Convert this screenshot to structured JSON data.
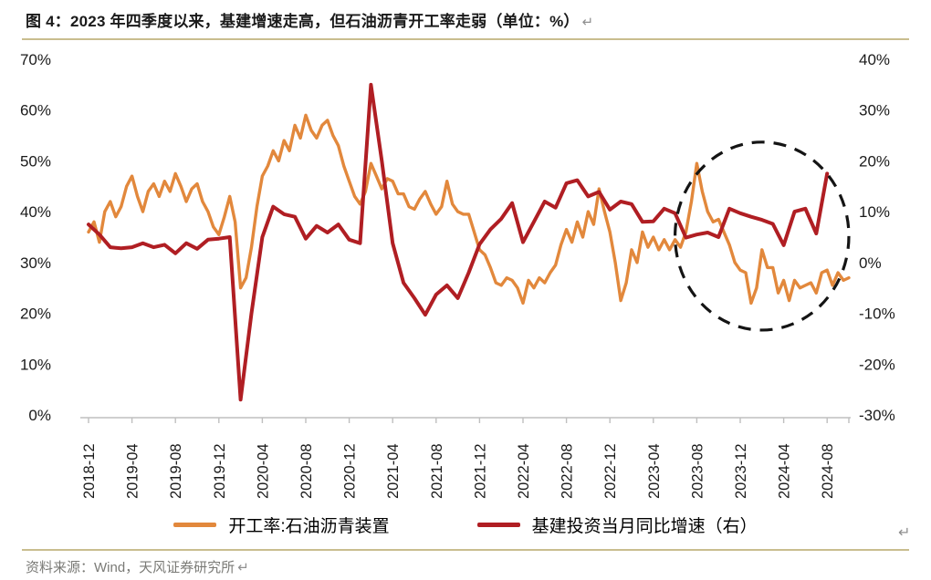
{
  "header": {
    "title": "图 4：2023 年四季度以来，基建增速走高，但石油沥青开工率走弱（单位：%）",
    "return_mark": "↵"
  },
  "footer": {
    "source": "资料来源：Wind，天风证券研究所",
    "return_mark": "↵"
  },
  "page": {
    "trailing_return_mark": "↵"
  },
  "colors": {
    "separator": "#c9bd8f",
    "axis_line": "#bfbfbf",
    "axis_text": "#1a1a1a",
    "muted_text": "#7a7a76",
    "annotation": "#141414"
  },
  "chart_data": {
    "type": "line",
    "x": {
      "start": "2018-12",
      "end": "2024-10",
      "tick_step_months": 4,
      "tick_labels": [
        "2018-12",
        "2019-04",
        "2019-08",
        "2019-12",
        "2020-04",
        "2020-08",
        "2020-12",
        "2021-04",
        "2021-08",
        "2021-12",
        "2022-04",
        "2022-08",
        "2022-12",
        "2023-04",
        "2023-08",
        "2023-12",
        "2024-04",
        "2024-08"
      ]
    },
    "left_axis": {
      "min": 0,
      "max": 70,
      "tick_labels": [
        "70%",
        "60%",
        "50%",
        "40%",
        "30%",
        "20%",
        "10%",
        "0%"
      ]
    },
    "right_axis": {
      "min": -30,
      "max": 40,
      "tick_labels": [
        "40%",
        "30%",
        "20%",
        "10%",
        "0%",
        "-10%",
        "-20%",
        "-30%"
      ]
    },
    "series": [
      {
        "name": "开工率:石油沥青装置",
        "axis": "left",
        "color": "#e2883c",
        "stroke_width": 3.4,
        "points_per_month": 2,
        "values": [
          36,
          38,
          34,
          40,
          42,
          39,
          41,
          45,
          47,
          43,
          40,
          44,
          45.5,
          43,
          46,
          44,
          47.5,
          45,
          42,
          44.5,
          45.5,
          42,
          40,
          37,
          35.5,
          39,
          43,
          38,
          25,
          27,
          33,
          41,
          47,
          49,
          52,
          50,
          54,
          52,
          57,
          54.5,
          59,
          56,
          54.5,
          57,
          58,
          55,
          53,
          49,
          46,
          43,
          41.5,
          44,
          49.5,
          47,
          44.5,
          46.5,
          46,
          43.5,
          43.5,
          41,
          40.5,
          42.5,
          44,
          41.5,
          39.5,
          41,
          46,
          41.5,
          40,
          39.5,
          39.5,
          36,
          32.5,
          31.5,
          29,
          26,
          25.5,
          27,
          26.5,
          25,
          22,
          26.5,
          25,
          27,
          26,
          28,
          29.5,
          33.5,
          36.5,
          34,
          38,
          35,
          40,
          37.5,
          44.5,
          40,
          36,
          30,
          22.5,
          26,
          32.5,
          30,
          36,
          33,
          35,
          32.5,
          34.5,
          32.5,
          34.5,
          33,
          36,
          42,
          49.5,
          44,
          40,
          38,
          38.5,
          36,
          33.5,
          30,
          28.5,
          28,
          22,
          25,
          32.5,
          29,
          29,
          24,
          26.5,
          22.5,
          26.5,
          25,
          25.5,
          26,
          24,
          28,
          28.5,
          25.5,
          28,
          26.5,
          27
        ]
      },
      {
        "name": "基建投资当月同比增速（右）",
        "axis": "right",
        "color": "#b01e23",
        "stroke_width": 4,
        "points_per_month": 1,
        "values": [
          7.5,
          5.5,
          3.0,
          2.8,
          3.0,
          3.8,
          3.0,
          3.5,
          1.8,
          3.8,
          2.7,
          4.5,
          4.7,
          5.0,
          -27.0,
          -10.0,
          5.0,
          11.0,
          9.5,
          9.0,
          4.7,
          7.2,
          5.9,
          7.5,
          4.5,
          3.8,
          35.0,
          20.0,
          3.8,
          -4.0,
          -7.0,
          -10.3,
          -6.3,
          -4.5,
          -7.0,
          -2.0,
          3.6,
          6.5,
          8.6,
          11.7,
          4.0,
          8.0,
          12.0,
          10.8,
          15.6,
          16.2,
          13.0,
          13.9,
          10.4,
          12.0,
          11.5,
          8.0,
          8.1,
          10.6,
          9.7,
          4.9,
          5.5,
          5.9,
          5.0,
          10.6,
          9.7,
          9.0,
          8.4,
          7.6,
          3.4,
          10.0,
          10.6,
          5.7,
          17.5
        ]
      }
    ],
    "annotation": {
      "shape": "dashed-ellipse",
      "center_month": "2024-02",
      "center_month_index": 62,
      "center_value_right": 5.2,
      "radius_months": 8,
      "radius_value": 18.5
    },
    "legend_position": "bottom-center",
    "grid": "off"
  }
}
